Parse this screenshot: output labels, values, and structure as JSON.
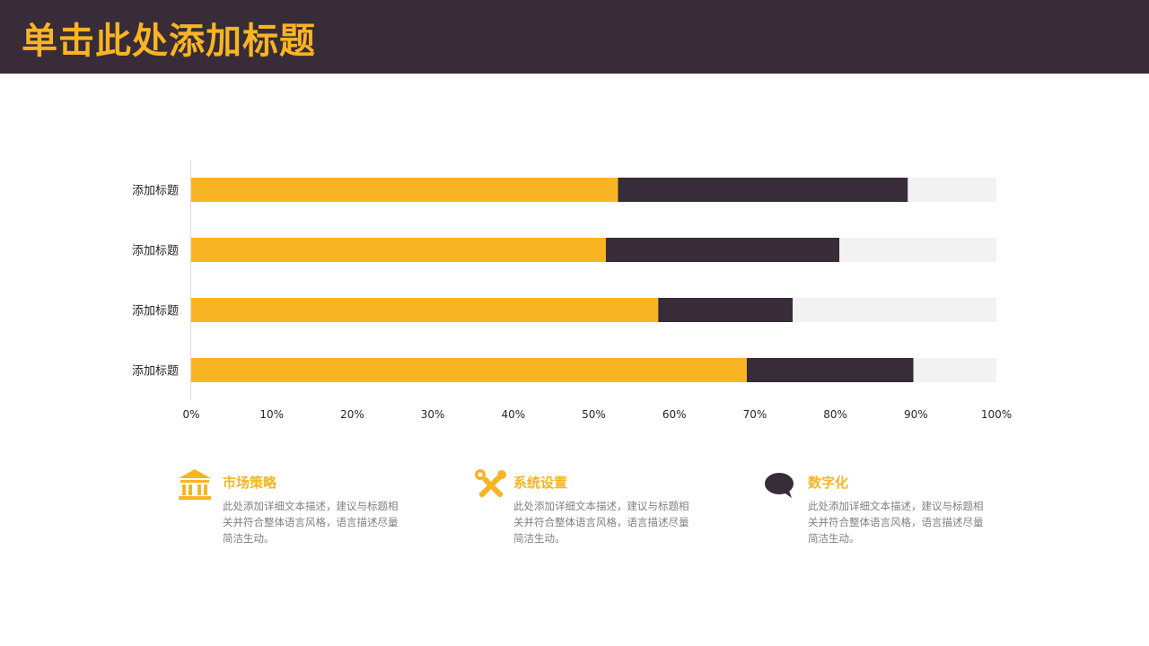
{
  "header": {
    "title": "单击此处添加标题"
  },
  "colors": {
    "accent": "#f9b424",
    "dark": "#372c37",
    "track": "#f2f2f2"
  },
  "chart_data": {
    "type": "bar",
    "orientation": "horizontal",
    "stacked": "percent",
    "categories": [
      "添加标题",
      "添加标题",
      "添加标题",
      "添加标题"
    ],
    "series": [
      {
        "color": "#f9b424",
        "values": [
          53,
          51.5,
          58,
          69
        ]
      },
      {
        "color": "#372c37",
        "values": [
          36,
          29,
          16.7,
          20.7
        ]
      },
      {
        "color": "#f2f2f2",
        "values": [
          11,
          19.5,
          25.3,
          10.3
        ]
      }
    ],
    "xlim": [
      0,
      100
    ],
    "xticks": [
      "0%",
      "10%",
      "20%",
      "30%",
      "40%",
      "50%",
      "60%",
      "70%",
      "80%",
      "90%",
      "100%"
    ],
    "grid": false,
    "legend": "none"
  },
  "features": [
    {
      "icon": "bank-icon",
      "title": "市场策略",
      "desc": "此处添加详细文本描述，建议与标题相关并符合整体语言风格，语言描述尽量简洁生动。"
    },
    {
      "icon": "tools-icon",
      "title": "系统设置",
      "desc": "此处添加详细文本描述，建议与标题相关并符合整体语言风格，语言描述尽量简洁生动。"
    },
    {
      "icon": "speech-bubble-icon",
      "title": "数字化",
      "desc": "此处添加详细文本描述，建议与标题相关并符合整体语言风格，语言描述尽量简洁生动。"
    }
  ]
}
